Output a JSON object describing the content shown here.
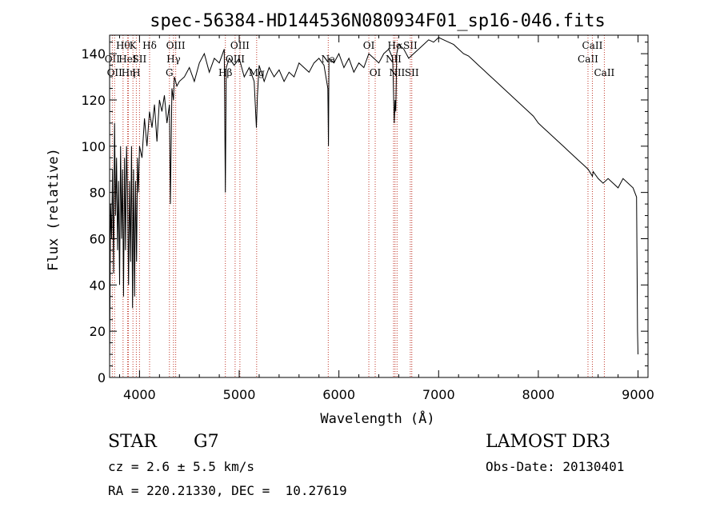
{
  "chart_data": {
    "type": "line",
    "title": "spec-56384-HD144536N080934F01_sp16-046.fits",
    "xlabel": "Wavelength (Å)",
    "ylabel": "Flux (relative)",
    "xlim": [
      3700,
      9100
    ],
    "ylim": [
      0,
      148
    ],
    "x_ticks": [
      4000,
      5000,
      6000,
      7000,
      8000,
      9000
    ],
    "y_ticks": [
      0,
      20,
      40,
      60,
      80,
      100,
      120,
      140
    ],
    "grid": false,
    "series": [
      {
        "name": "flux",
        "x": [
          3700,
          3710,
          3720,
          3730,
          3740,
          3750,
          3760,
          3770,
          3780,
          3790,
          3800,
          3810,
          3820,
          3830,
          3840,
          3850,
          3860,
          3870,
          3880,
          3890,
          3900,
          3910,
          3920,
          3930,
          3940,
          3950,
          3960,
          3970,
          3980,
          3990,
          4000,
          4025,
          4050,
          4075,
          4100,
          4125,
          4150,
          4175,
          4200,
          4225,
          4250,
          4275,
          4300,
          4310,
          4325,
          4340,
          4350,
          4375,
          4400,
          4450,
          4500,
          4550,
          4600,
          4650,
          4700,
          4750,
          4800,
          4850,
          4861,
          4870,
          4900,
          4950,
          5000,
          5050,
          5100,
          5150,
          5172,
          5183,
          5200,
          5250,
          5300,
          5350,
          5400,
          5450,
          5500,
          5550,
          5600,
          5650,
          5700,
          5750,
          5800,
          5850,
          5889,
          5895,
          5900,
          5950,
          6000,
          6050,
          6100,
          6150,
          6200,
          6250,
          6300,
          6350,
          6400,
          6450,
          6500,
          6540,
          6555,
          6563,
          6570,
          6580,
          6600,
          6650,
          6700,
          6750,
          6800,
          6850,
          6900,
          6950,
          7000,
          7050,
          7100,
          7150,
          7200,
          7250,
          7300,
          7350,
          7400,
          7450,
          7500,
          7550,
          7600,
          7650,
          7700,
          7750,
          7800,
          7850,
          7900,
          7950,
          8000,
          8050,
          8100,
          8150,
          8200,
          8250,
          8300,
          8350,
          8400,
          8450,
          8500,
          8542,
          8550,
          8600,
          8650,
          8700,
          8750,
          8800,
          8850,
          8900,
          8950,
          8985,
          8995,
          9000
        ],
        "y": [
          5,
          75,
          60,
          90,
          45,
          110,
          70,
          95,
          55,
          85,
          40,
          100,
          60,
          90,
          35,
          95,
          55,
          100,
          80,
          40,
          85,
          50,
          100,
          30,
          90,
          35,
          85,
          50,
          95,
          80,
          100,
          95,
          112,
          100,
          115,
          108,
          118,
          102,
          120,
          115,
          122,
          110,
          118,
          75,
          125,
          120,
          130,
          126,
          128,
          130,
          134,
          128,
          136,
          140,
          132,
          138,
          136,
          142,
          80,
          134,
          138,
          135,
          138,
          130,
          134,
          128,
          108,
          122,
          135,
          128,
          134,
          130,
          133,
          128,
          132,
          130,
          136,
          134,
          132,
          136,
          138,
          135,
          125,
          100,
          138,
          136,
          140,
          134,
          138,
          132,
          136,
          134,
          140,
          138,
          136,
          140,
          142,
          138,
          110,
          120,
          115,
          140,
          144,
          142,
          138,
          140,
          142,
          144,
          146,
          145,
          147,
          146,
          145,
          144,
          142,
          140,
          139,
          137,
          135,
          133,
          131,
          129,
          127,
          125,
          123,
          121,
          119,
          117,
          115,
          113,
          110,
          108,
          106,
          104,
          102,
          100,
          98,
          96,
          94,
          92,
          90,
          87,
          89,
          86,
          84,
          86,
          84,
          82,
          86,
          84,
          82,
          78,
          20,
          10
        ]
      }
    ],
    "line_markers": [
      {
        "wavelength": 3727,
        "label": "OII",
        "row": 2
      },
      {
        "wavelength": 3750,
        "label": "OII",
        "row": 3
      },
      {
        "wavelength": 3835,
        "label": "Hθ",
        "row": 1
      },
      {
        "wavelength": 3880,
        "label": "HeI",
        "row": 2
      },
      {
        "wavelength": 3889,
        "label": "Hη",
        "row": 3
      },
      {
        "wavelength": 3934,
        "label": "K",
        "row": 1
      },
      {
        "wavelength": 3968,
        "label": "H",
        "row": 3
      },
      {
        "wavelength": 4000,
        "label": "SII",
        "row": 2
      },
      {
        "wavelength": 4101,
        "label": "Hδ",
        "row": 1
      },
      {
        "wavelength": 4300,
        "label": "G",
        "row": 3
      },
      {
        "wavelength": 4341,
        "label": "Hγ",
        "row": 2
      },
      {
        "wavelength": 4363,
        "label": "OIII",
        "row": 1
      },
      {
        "wavelength": 4861,
        "label": "Hβ",
        "row": 3
      },
      {
        "wavelength": 4959,
        "label": "OIII",
        "row": 2
      },
      {
        "wavelength": 5007,
        "label": "OIII",
        "row": 1
      },
      {
        "wavelength": 5175,
        "label": "Mg",
        "row": 3
      },
      {
        "wavelength": 5893,
        "label": "Na",
        "row": 2
      },
      {
        "wavelength": 6300,
        "label": "OI",
        "row": 1
      },
      {
        "wavelength": 6364,
        "label": "OI",
        "row": 3
      },
      {
        "wavelength": 6548,
        "label": "NII",
        "row": 2
      },
      {
        "wavelength": 6563,
        "label": "Hα",
        "row": 1
      },
      {
        "wavelength": 6583,
        "label": "NII",
        "row": 3
      },
      {
        "wavelength": 6716,
        "label": "SII",
        "row": 1
      },
      {
        "wavelength": 6731,
        "label": "SII",
        "row": 3
      },
      {
        "wavelength": 8498,
        "label": "CaII",
        "row": 2
      },
      {
        "wavelength": 8542,
        "label": "CaII",
        "row": 1
      },
      {
        "wavelength": 8662,
        "label": "CaII",
        "row": 3
      }
    ]
  },
  "info": {
    "object_class": "STAR",
    "subclass": "G7",
    "survey": "LAMOST DR3",
    "cz": "cz = 2.6 ± 5.5 km/s",
    "obs_date": "Obs-Date: 20130401",
    "coords": "RA = 220.21330, DEC =  10.27619"
  }
}
